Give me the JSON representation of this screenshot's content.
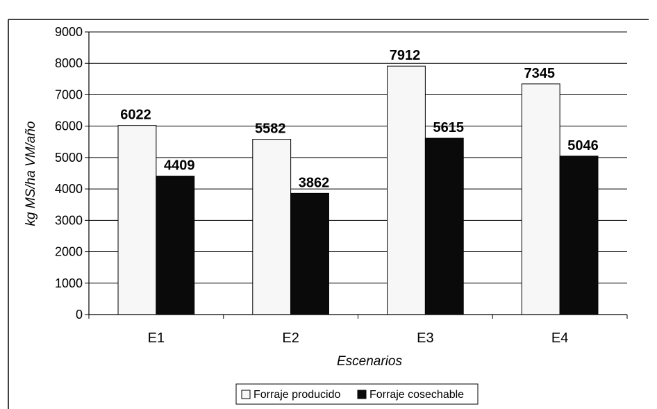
{
  "chart_data": {
    "type": "bar",
    "categories": [
      "E1",
      "E2",
      "E3",
      "E4"
    ],
    "series": [
      {
        "name": "Forraje producido",
        "values": [
          6022,
          5582,
          7912,
          7345
        ],
        "color": "#f7f7f7"
      },
      {
        "name": "Forraje cosechable",
        "values": [
          4409,
          3862,
          5615,
          5046
        ],
        "color": "#0a0a0a"
      }
    ],
    "title": "",
    "xlabel": "Escenarios",
    "ylabel": "kg MS/ha VM/año",
    "ylim": [
      0,
      9000
    ],
    "yticks": [
      0,
      1000,
      2000,
      3000,
      4000,
      5000,
      6000,
      7000,
      8000,
      9000
    ],
    "grid": true,
    "legend_position": "bottom"
  }
}
